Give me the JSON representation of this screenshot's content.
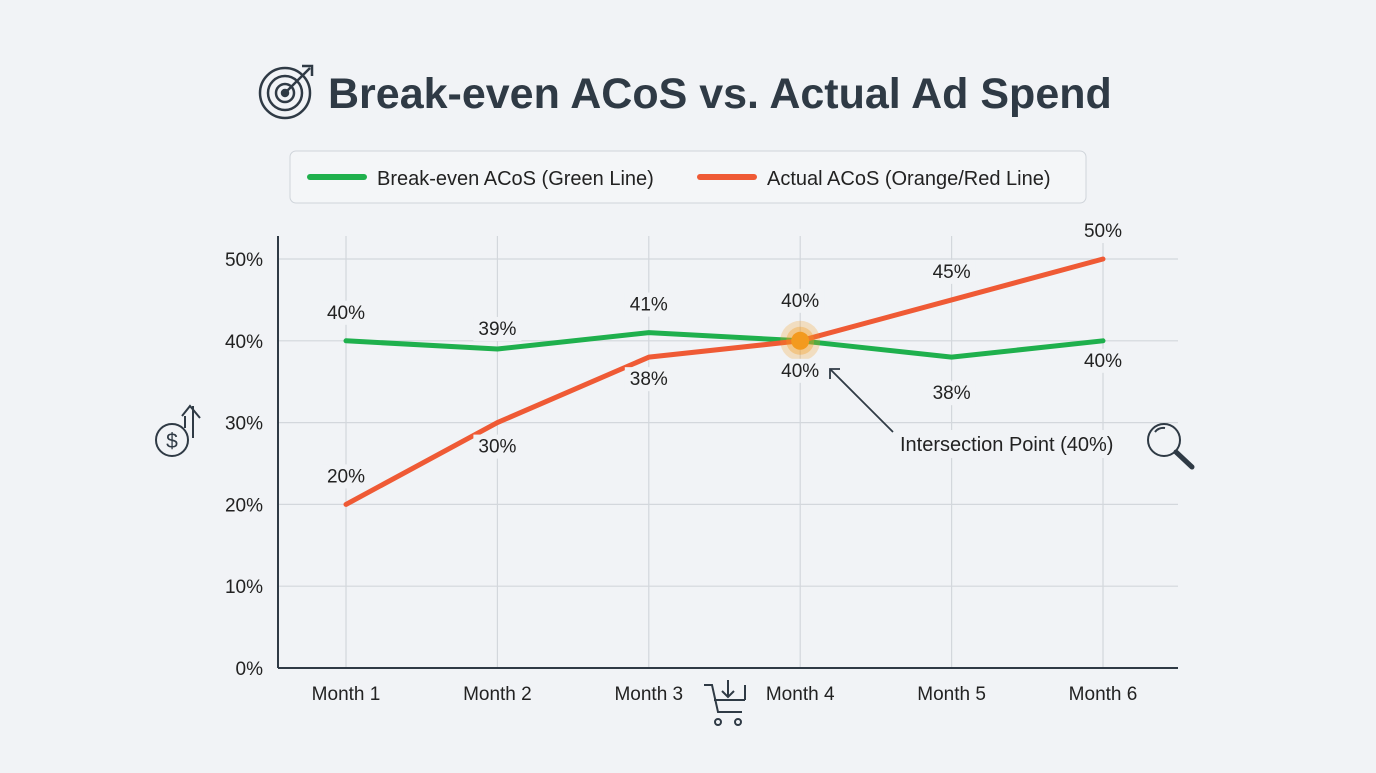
{
  "chart_data": {
    "type": "line",
    "title": "Break-even ACoS vs. Actual Ad Spend",
    "categories": [
      "Month 1",
      "Month 2",
      "Month 3",
      "Month 4",
      "Month 5",
      "Month 6"
    ],
    "series": [
      {
        "name": "Break-even ACoS (Green Line)",
        "color": "#1fb04d",
        "values": [
          40,
          39,
          41,
          40,
          38,
          40
        ],
        "labels": [
          "40%",
          "39%",
          "41%",
          "40%",
          "38%",
          "40%"
        ]
      },
      {
        "name": "Actual ACoS (Orange/Red Line)",
        "color": "#ef5a35",
        "values": [
          20,
          30,
          38,
          40,
          45,
          50
        ],
        "labels": [
          "20%",
          "30%",
          "38%",
          "40%",
          "45%",
          "50%"
        ]
      }
    ],
    "ylim": [
      0,
      50
    ],
    "yticks": [
      "0%",
      "10%",
      "20%",
      "30%",
      "40%",
      "50%"
    ],
    "ytick_values": [
      0,
      10,
      20,
      30,
      40,
      50
    ],
    "grid": true,
    "legend": "top-center",
    "annotation": {
      "text": "Intersection Point (40%)",
      "category": "Month 4",
      "value": 40,
      "marker_color": "#f39a1e"
    },
    "icons": [
      "target-icon",
      "dollar-up-icon",
      "cart-download-icon",
      "magnifier-icon"
    ]
  }
}
